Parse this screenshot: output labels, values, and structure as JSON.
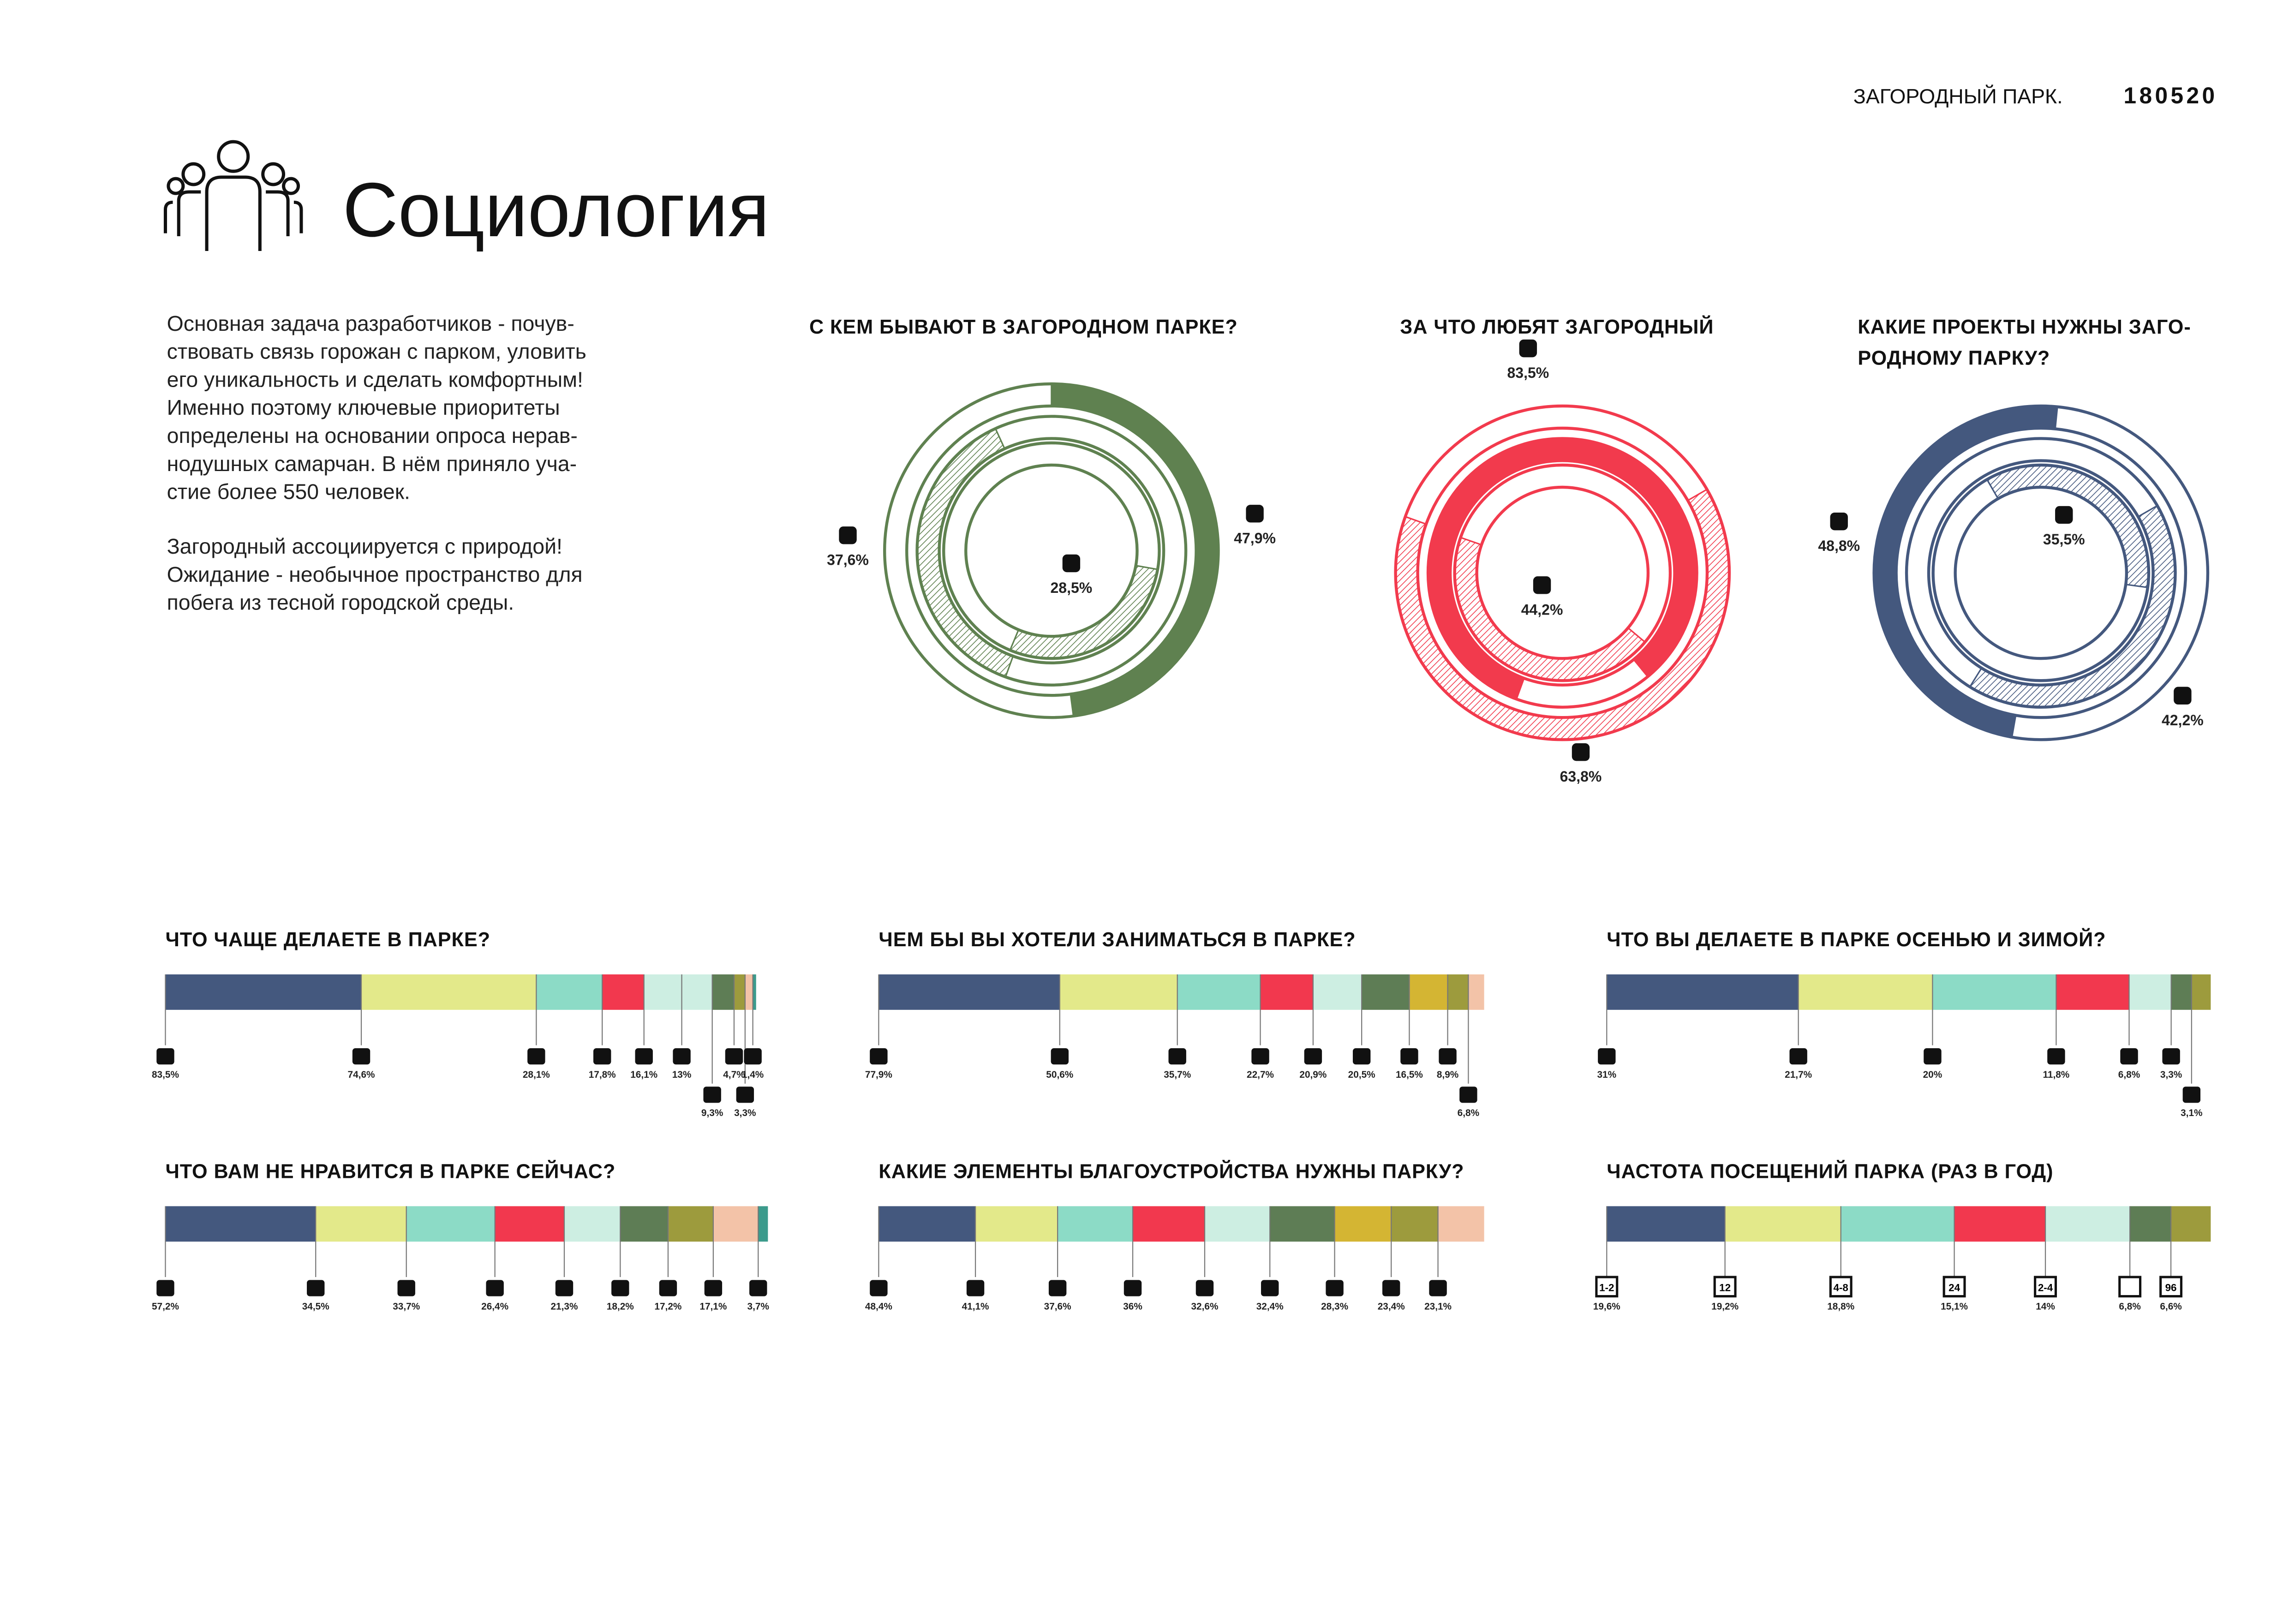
{
  "header": {
    "place": "ЗАГОРОДНЫЙ ПАРК.",
    "code": "180520",
    "title": "Социология"
  },
  "intro": {
    "paragraphs": [
      [
        "Основная задача разработчиков - почув-",
        "ствовать связь горожан с парком, уловить",
        "его уникальность и сделать комфортным!",
        "Именно поэтому ключевые приоритеты",
        "определены на основании опроса нерав-",
        "нодушных самарчан. В нём приняло уча-",
        "стие более 550 человек."
      ],
      [
        "Загородный ассоциируется с природой!",
        "Ожидание - необычное пространство для",
        "побега из тесной городской среды."
      ]
    ]
  },
  "chart_data": [
    {
      "type": "donut",
      "title": [
        "С КЕМ БЫВАЮТ В ЗАГОРОДНОМ ПАРКЕ?"
      ],
      "color": "#5f8150",
      "values": [
        47.9,
        37.6,
        28.5
      ],
      "value_labels": [
        "47,9%",
        "37,6%",
        "28,5%"
      ],
      "hatched": [
        false,
        true,
        true
      ]
    },
    {
      "type": "donut",
      "title": [
        "ЗА ЧТО ЛЮБЯТ ЗАГОРОДНЫЙ"
      ],
      "color": "#f23a4d",
      "values": [
        63.8,
        83.5,
        44.2
      ],
      "value_labels": [
        "63,8%",
        "83,5%",
        "44,2%"
      ],
      "hatched": [
        true,
        false,
        true
      ]
    },
    {
      "type": "donut",
      "title": [
        "КАКИЕ ПРОЕКТЫ НУЖНЫ ЗАГО-",
        "РОДНОМУ ПАРКУ?"
      ],
      "color": "#44587e",
      "values": [
        48.8,
        42.2,
        35.5
      ],
      "value_labels": [
        "48,8%",
        "42,2%",
        "35,5%"
      ],
      "hatched": [
        false,
        true,
        true
      ]
    },
    {
      "type": "stacked-bar",
      "title": "ЧТО ЧАЩЕ ДЕЛАЕТЕ В ПАРКЕ?",
      "values": [
        83.5,
        74.6,
        28.1,
        17.8,
        16.1,
        13,
        9.3,
        4.7,
        3.3,
        1.4
      ],
      "value_labels": [
        "83,5%",
        "74,6%",
        "28,1%",
        "17,8%",
        "16,1%",
        "13%",
        "9,3%",
        "4,7%",
        "3,3%",
        "1,4%"
      ],
      "colors": [
        "#44587e",
        "#e3e98a",
        "#8cdbc6",
        "#f2384e",
        "#cdeee2",
        "#cdeee2",
        "#5e7d55",
        "#9d9b3d",
        "#f3c3a8",
        "#3c9b8c"
      ]
    },
    {
      "type": "stacked-bar",
      "title": "ЧЕМ БЫ ВЫ ХОТЕЛИ ЗАНИМАТЬСЯ В ПАРКЕ?",
      "values": [
        77.9,
        50.6,
        35.7,
        22.7,
        20.9,
        20.5,
        16.5,
        8.9,
        6.8
      ],
      "value_labels": [
        "77,9%",
        "50,6%",
        "35,7%",
        "22,7%",
        "20,9%",
        "20,5%",
        "16,5%",
        "8,9%",
        "6,8%"
      ],
      "colors": [
        "#44587e",
        "#e3e98a",
        "#8cdbc6",
        "#f2384e",
        "#cdeee2",
        "#5e7d55",
        "#d4b533",
        "#9d9b3d",
        "#f3c3a8"
      ]
    },
    {
      "type": "stacked-bar",
      "title": "ЧТО ВЫ ДЕЛАЕТЕ В ПАРКЕ ОСЕНЬЮ И ЗИМОЙ?",
      "values": [
        31,
        21.7,
        20,
        11.8,
        6.8,
        3.3,
        3.1
      ],
      "value_labels": [
        "31%",
        "21,7%",
        "20%",
        "11,8%",
        "6,8%",
        "3,3%",
        "3,1%"
      ],
      "colors": [
        "#44587e",
        "#e3e98a",
        "#8cdbc6",
        "#f2384e",
        "#cdeee2",
        "#5e7d55",
        "#9d9b3d"
      ]
    },
    {
      "type": "stacked-bar",
      "title": "ЧТО ВАМ НЕ НРАВИТСЯ В ПАРКЕ СЕЙЧАС?",
      "values": [
        57.2,
        34.5,
        33.7,
        26.4,
        21.3,
        18.2,
        17.2,
        17.1,
        3.7
      ],
      "value_labels": [
        "57,2%",
        "34,5%",
        "33,7%",
        "26,4%",
        "21,3%",
        "18,2%",
        "17,2%",
        "17,1%",
        "3,7%"
      ],
      "colors": [
        "#44587e",
        "#e3e98a",
        "#8cdbc6",
        "#f2384e",
        "#cdeee2",
        "#5e7d55",
        "#9d9b3d",
        "#f3c3a8",
        "#3c9b8c"
      ]
    },
    {
      "type": "stacked-bar",
      "title": "КАКИЕ ЭЛЕМЕНТЫ БЛАГОУСТРОЙСТВА НУЖНЫ ПАРКУ?",
      "values": [
        48.4,
        41.1,
        37.6,
        36,
        32.6,
        32.4,
        28.3,
        23.4,
        23.1
      ],
      "value_labels": [
        "48,4%",
        "41,1%",
        "37,6%",
        "36%",
        "32,6%",
        "32,4%",
        "28,3%",
        "23,4%",
        "23,1%"
      ],
      "colors": [
        "#44587e",
        "#e3e98a",
        "#8cdbc6",
        "#f2384e",
        "#cdeee2",
        "#5e7d55",
        "#d4b533",
        "#9d9b3d",
        "#f3c3a8"
      ]
    },
    {
      "type": "stacked-bar",
      "title": "ЧАСТОТА ПОСЕЩЕНИЙ ПАРКА (РАЗ В ГОД)",
      "categories": [
        "1-2",
        "12",
        "4-8",
        "24",
        "2-4",
        null,
        "96"
      ],
      "values": [
        19.6,
        19.2,
        18.8,
        15.1,
        14,
        6.8,
        6.6
      ],
      "value_labels": [
        "19,6%",
        "19,2%",
        "18,8%",
        "15,1%",
        "14%",
        "6,8%",
        "6,6%"
      ],
      "colors": [
        "#44587e",
        "#e3e98a",
        "#8cdbc6",
        "#f2384e",
        "#cdeee2",
        "#5e7d55",
        "#9d9b3d"
      ]
    }
  ]
}
